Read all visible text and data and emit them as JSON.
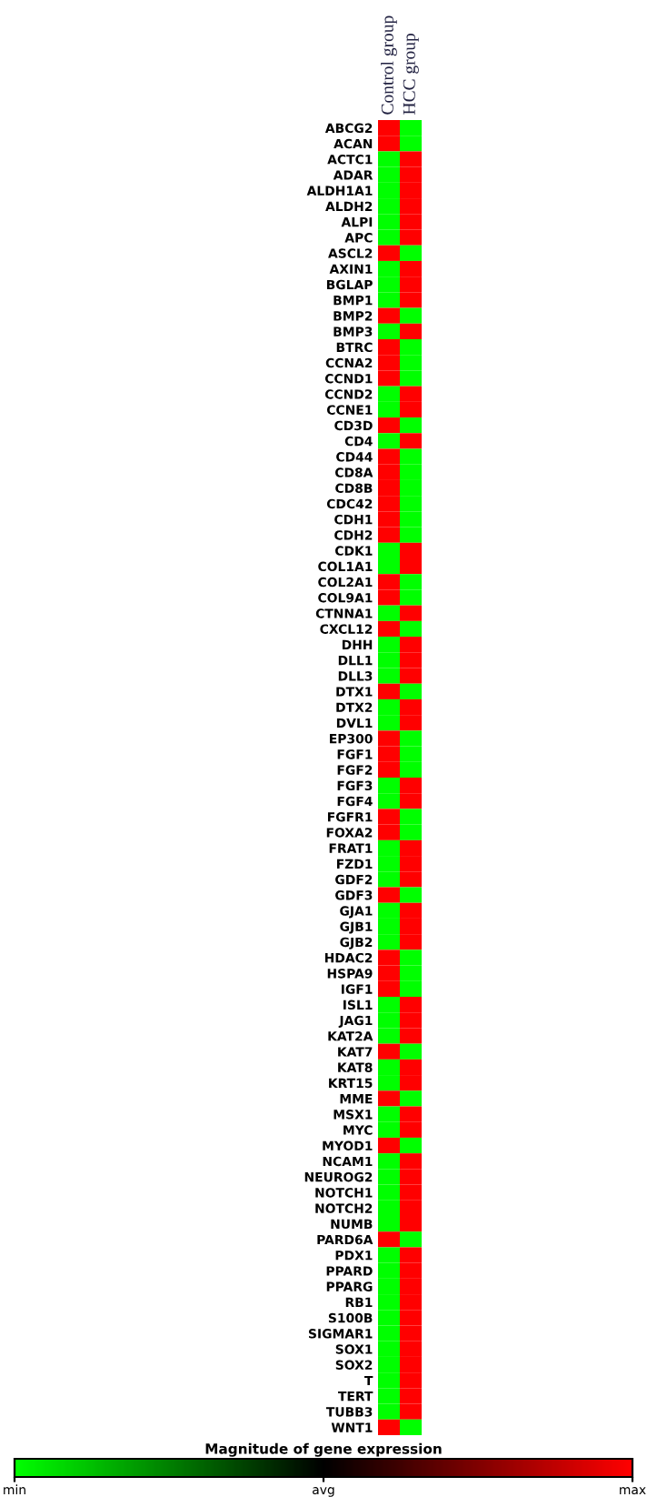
{
  "chart_data": {
    "type": "heatmap",
    "categories": [
      "Control group",
      "HCC group"
    ],
    "y_categories": [
      "ABCG2",
      "ACAN",
      "ACTC1",
      "ADAR",
      "ALDH1A1",
      "ALDH2",
      "ALPI",
      "APC",
      "ASCL2",
      "AXIN1",
      "BGLAP",
      "BMP1",
      "BMP2",
      "BMP3",
      "BTRC",
      "CCNA2",
      "CCND1",
      "CCND2",
      "CCNE1",
      "CD3D",
      "CD4",
      "CD44",
      "CD8A",
      "CD8B",
      "CDC42",
      "CDH1",
      "CDH2",
      "CDK1",
      "COL1A1",
      "COL2A1",
      "COL9A1",
      "CTNNA1",
      "CXCL12",
      "DHH",
      "DLL1",
      "DLL3",
      "DTX1",
      "DTX2",
      "DVL1",
      "EP300",
      "FGF1",
      "FGF2",
      "FGF3",
      "FGF4",
      "FGFR1",
      "FOXA2",
      "FRAT1",
      "FZD1",
      "GDF2",
      "GDF3",
      "GJA1",
      "GJB1",
      "GJB2",
      "HDAC2",
      "HSPA9",
      "IGF1",
      "ISL1",
      "JAG1",
      "KAT2A",
      "KAT7",
      "KAT8",
      "KRT15",
      "MME",
      "MSX1",
      "MYC",
      "MYOD1",
      "NCAM1",
      "NEUROG2",
      "NOTCH1",
      "NOTCH2",
      "NUMB",
      "PARD6A",
      "PDX1",
      "PPARD",
      "PPARG",
      "RB1",
      "S100B",
      "SIGMAR1",
      "SOX1",
      "SOX2",
      "T",
      "TERT",
      "TUBB3",
      "WNT1"
    ],
    "cells": [
      [
        1,
        -1
      ],
      [
        1,
        -1
      ],
      [
        -1,
        1
      ],
      [
        -1,
        1
      ],
      [
        -1,
        1
      ],
      [
        -1,
        1
      ],
      [
        -1,
        1
      ],
      [
        -1,
        1
      ],
      [
        1,
        -1
      ],
      [
        -1,
        1
      ],
      [
        -1,
        1
      ],
      [
        -1,
        1
      ],
      [
        1,
        -1
      ],
      [
        -1,
        1
      ],
      [
        1,
        -1
      ],
      [
        1,
        -1
      ],
      [
        1,
        -1
      ],
      [
        -1,
        1
      ],
      [
        -1,
        1
      ],
      [
        1,
        -1
      ],
      [
        -1,
        1
      ],
      [
        1,
        -1
      ],
      [
        1,
        -1
      ],
      [
        1,
        -1
      ],
      [
        1,
        -1
      ],
      [
        1,
        -1
      ],
      [
        1,
        -1
      ],
      [
        -1,
        1
      ],
      [
        -1,
        1
      ],
      [
        1,
        -1
      ],
      [
        1,
        -1
      ],
      [
        -1,
        1
      ],
      [
        1,
        -1
      ],
      [
        -1,
        1
      ],
      [
        -1,
        1
      ],
      [
        -1,
        1
      ],
      [
        1,
        -1
      ],
      [
        -1,
        1
      ],
      [
        -1,
        1
      ],
      [
        1,
        -1
      ],
      [
        1,
        -1
      ],
      [
        1,
        -1
      ],
      [
        -1,
        1
      ],
      [
        -1,
        1
      ],
      [
        1,
        -1
      ],
      [
        1,
        -1
      ],
      [
        -1,
        1
      ],
      [
        -1,
        1
      ],
      [
        -1,
        1
      ],
      [
        1,
        -1
      ],
      [
        -1,
        1
      ],
      [
        -1,
        1
      ],
      [
        -1,
        1
      ],
      [
        1,
        -1
      ],
      [
        1,
        -1
      ],
      [
        1,
        -1
      ],
      [
        -1,
        1
      ],
      [
        -1,
        1
      ],
      [
        -1,
        1
      ],
      [
        1,
        -1
      ],
      [
        -1,
        1
      ],
      [
        -1,
        1
      ],
      [
        1,
        -1
      ],
      [
        -1,
        1
      ],
      [
        -1,
        1
      ],
      [
        1,
        -1
      ],
      [
        -1,
        1
      ],
      [
        -1,
        1
      ],
      [
        -1,
        1
      ],
      [
        -1,
        1
      ],
      [
        -1,
        1
      ],
      [
        1,
        -1
      ],
      [
        -1,
        1
      ],
      [
        -1,
        1
      ],
      [
        -1,
        1
      ],
      [
        -1,
        1
      ],
      [
        -1,
        1
      ],
      [
        -1,
        1
      ],
      [
        -1,
        1
      ],
      [
        -1,
        1
      ],
      [
        -1,
        1
      ],
      [
        -1,
        1
      ],
      [
        -1,
        1
      ],
      [
        1,
        -1
      ]
    ],
    "clabel": "Magnitude of gene expression",
    "clim": [
      -1,
      1
    ],
    "cticks": [
      {
        "value": -1,
        "label": "min"
      },
      {
        "value": 0,
        "label": "avg"
      },
      {
        "value": 1,
        "label": "max"
      }
    ]
  }
}
